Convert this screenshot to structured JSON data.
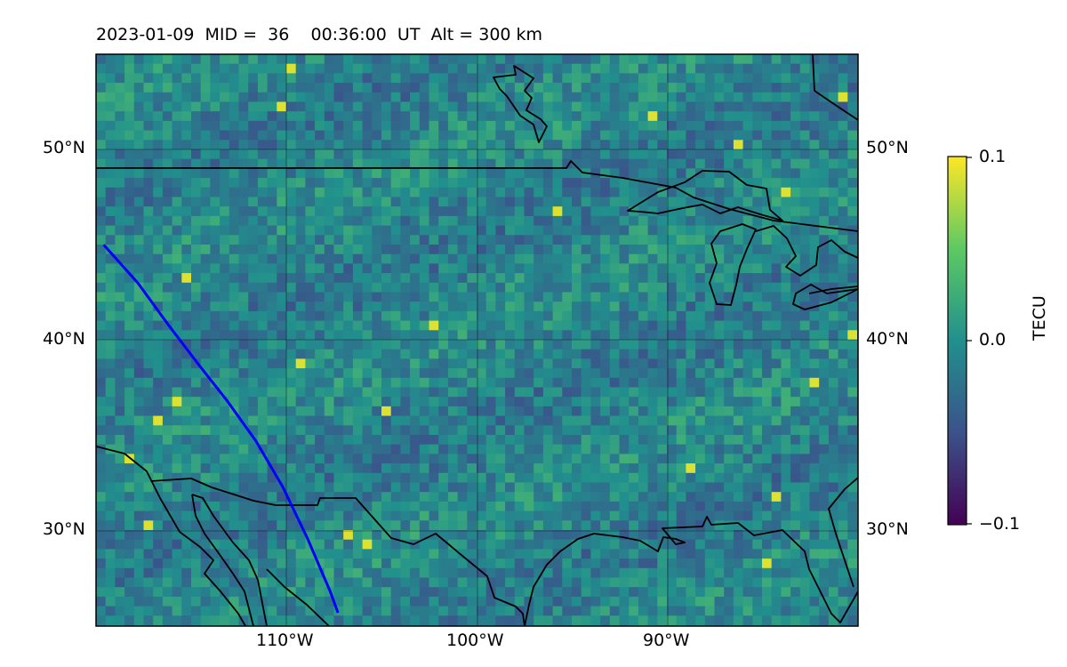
{
  "title": "2023-01-09  MID =  36    00:36:00  UT  Alt = 300 km",
  "map": {
    "extent_lon": [
      -120,
      -80
    ],
    "extent_lat": [
      25,
      55
    ],
    "lat_ticks": [
      {
        "value": 50,
        "label": "50°N"
      },
      {
        "value": 40,
        "label": "40°N"
      },
      {
        "value": 30,
        "label": "30°N"
      }
    ],
    "lon_ticks": [
      {
        "value": -110,
        "label": "110°W"
      },
      {
        "value": -100,
        "label": "100°W"
      },
      {
        "value": -90,
        "label": "90°W"
      }
    ],
    "track_color": "#0000ff",
    "track": [
      [
        -119.6,
        45.0
      ],
      [
        -117.8,
        43.0
      ],
      [
        -116.2,
        40.8
      ],
      [
        -114.6,
        38.7
      ],
      [
        -113.1,
        36.8
      ],
      [
        -111.6,
        34.7
      ],
      [
        -110.2,
        32.3
      ],
      [
        -108.9,
        29.6
      ],
      [
        -107.7,
        26.8
      ],
      [
        -107.3,
        25.7
      ]
    ]
  },
  "colorbar": {
    "title": "TECU",
    "min_label": "−0.1",
    "mid_label": "0.0",
    "max_label": "0.1",
    "range": [
      -0.1,
      0.1
    ],
    "colormap": "viridis",
    "colors": [
      "#440154",
      "#3b528b",
      "#21908d",
      "#5dc963",
      "#fde725"
    ]
  }
}
